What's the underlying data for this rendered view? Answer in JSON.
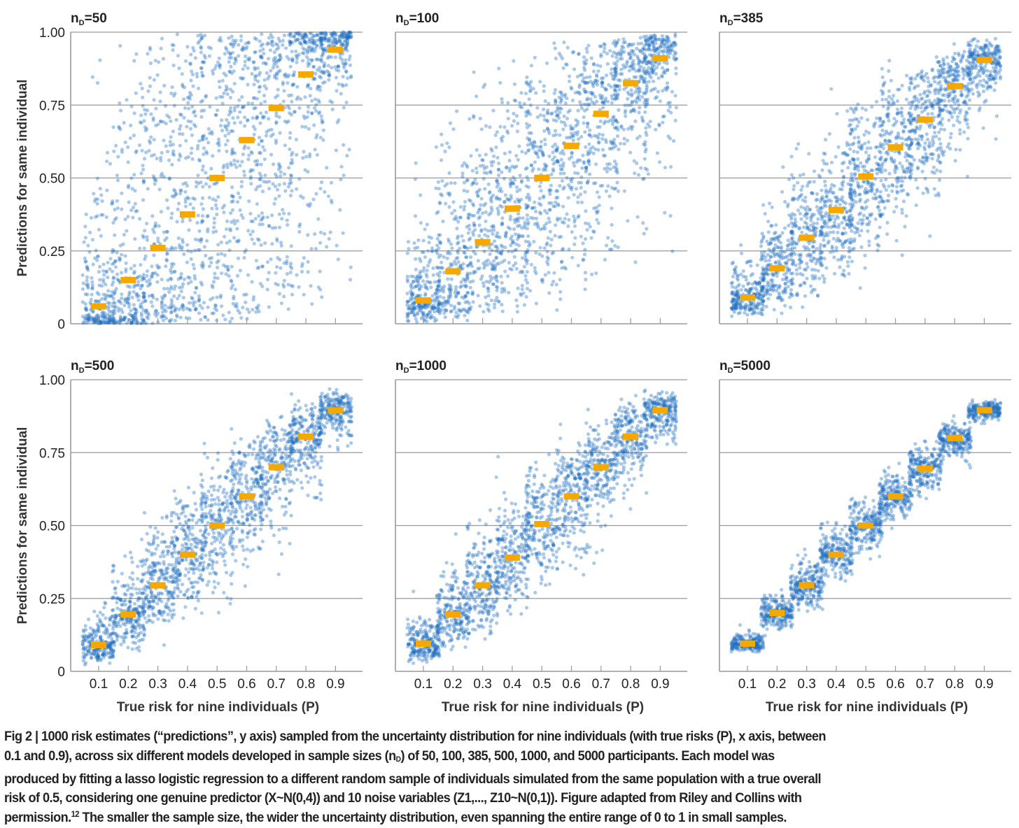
{
  "chart_data": {
    "type": "scatter",
    "layout": "2x3 panels",
    "ylabel": "Predictions for same individual",
    "xlabel": "True risk for nine individuals (P)",
    "x": [
      0.1,
      0.2,
      0.3,
      0.4,
      0.5,
      0.6,
      0.7,
      0.8,
      0.9
    ],
    "x_tick_labels": [
      "0.1",
      "0.2",
      "0.3",
      "0.4",
      "0.5",
      "0.6",
      "0.7",
      "0.8",
      "0.9"
    ],
    "y_ticks": [
      0,
      0.25,
      0.5,
      0.75,
      1.0
    ],
    "y_tick_labels": [
      "0",
      "0.25",
      "0.50",
      "0.75",
      "1.00"
    ],
    "ylim": [
      0,
      1
    ],
    "grid": "horizontal",
    "points_per_individual": 1000,
    "point_color": "#1f6fc0",
    "mean_marker_color": "#f5a800",
    "panels": [
      {
        "title_prefix": "n",
        "title_sub": "D",
        "title_suffix": "=50",
        "n": 50,
        "means": [
          0.06,
          0.15,
          0.26,
          0.375,
          0.5,
          0.63,
          0.74,
          0.855,
          0.94
        ],
        "logit_sd": 1.8
      },
      {
        "title_prefix": "n",
        "title_sub": "D",
        "title_suffix": "=100",
        "n": 100,
        "means": [
          0.08,
          0.18,
          0.28,
          0.395,
          0.5,
          0.61,
          0.72,
          0.825,
          0.91
        ],
        "logit_sd": 1.0
      },
      {
        "title_prefix": "n",
        "title_sub": "D",
        "title_suffix": "=385",
        "n": 385,
        "means": [
          0.09,
          0.19,
          0.295,
          0.39,
          0.505,
          0.605,
          0.7,
          0.815,
          0.905
        ],
        "logit_sd": 0.55
      },
      {
        "title_prefix": "n",
        "title_sub": "D",
        "title_suffix": "=500",
        "n": 500,
        "means": [
          0.09,
          0.195,
          0.295,
          0.4,
          0.5,
          0.6,
          0.7,
          0.805,
          0.895
        ],
        "logit_sd": 0.45
      },
      {
        "title_prefix": "n",
        "title_sub": "D",
        "title_suffix": "=1000",
        "n": 1000,
        "means": [
          0.095,
          0.195,
          0.295,
          0.39,
          0.505,
          0.6,
          0.7,
          0.805,
          0.895
        ],
        "logit_sd": 0.42
      },
      {
        "title_prefix": "n",
        "title_sub": "D",
        "title_suffix": "=5000",
        "n": 5000,
        "means": [
          0.095,
          0.2,
          0.295,
          0.4,
          0.5,
          0.6,
          0.695,
          0.8,
          0.895
        ],
        "logit_sd": 0.18
      }
    ]
  },
  "caption": {
    "l1": "Fig 2 | 1000 risk estimates (“predictions”, y axis) sampled from the uncertainty distribution for nine individuals (with true risks (P), x axis, between",
    "l2a": "0.1 and 0.9), across six different models developed in sample sizes (n",
    "l2sub": "D",
    "l2b": ") of 50, 100, 385, 500, 1000, and 5000 participants. Each model was",
    "l3": "produced by fitting a lasso logistic regression to a different random sample of individuals simulated from the same population with a true overall",
    "l4": "risk of 0.5, considering one genuine predictor (X~N(0,4)) and 10 noise variables (Z1,..., Z10~N(0,1)). Figure adapted from Riley and Collins with",
    "l5a": "permission.",
    "l5sup": "12",
    "l5b": " The smaller the sample size, the wider the uncertainty distribution, even spanning the entire range of 0 to 1 in small samples."
  }
}
